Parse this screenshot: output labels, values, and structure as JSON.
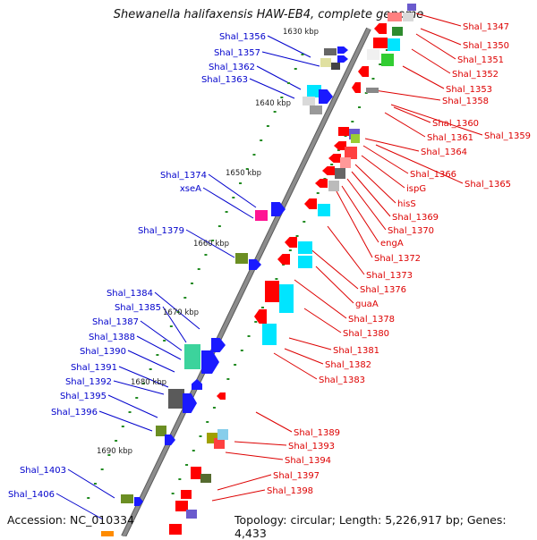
{
  "title": "Shewanella halifaxensis HAW-EB4, complete genome",
  "footer": {
    "accession": "Accession: NC_010334",
    "summary": "Topology: circular; Length: 5,226,917 bp; Genes: 4,433"
  },
  "colors": {
    "left_label": "#0000cc",
    "right_label": "#dd0000",
    "backbone": "#8c8c8c",
    "tick_dot": "#228b22",
    "forward_gene": "#1a1aff",
    "reverse_gene": "#ff0000"
  },
  "scale_labels": [
    "1630 kbp",
    "1640 kbp",
    "1650 kbp",
    "1660 kbp",
    "1670 kbp",
    "1680 kbp",
    "1690 kbp"
  ],
  "left_labels": [
    "Shal_1356",
    "Shal_1357",
    "Shal_1362",
    "Shal_1363",
    "Shal_1374",
    "xseA",
    "Shal_1379",
    "Shal_1384",
    "Shal_1385",
    "Shal_1387",
    "Shal_1388",
    "Shal_1390",
    "Shal_1391",
    "Shal_1392",
    "Shal_1395",
    "Shal_1396",
    "Shal_1403",
    "Shal_1406"
  ],
  "right_labels": [
    "Shal_1347",
    "Shal_1350",
    "Shal_1351",
    "Shal_1352",
    "Shal_1353",
    "Shal_1358",
    "Shal_1360",
    "Shal_1359",
    "Shal_1361",
    "Shal_1364",
    "Shal_1366",
    "Shal_1365",
    "ispG",
    "hisS",
    "Shal_1369",
    "Shal_1370",
    "engA",
    "Shal_1372",
    "Shal_1373",
    "Shal_1376",
    "guaA",
    "Shal_1378",
    "Shal_1380",
    "Shal_1381",
    "Shal_1382",
    "Shal_1383",
    "Shal_1389",
    "Shal_1393",
    "Shal_1394",
    "Shal_1397",
    "Shal_1398"
  ]
}
